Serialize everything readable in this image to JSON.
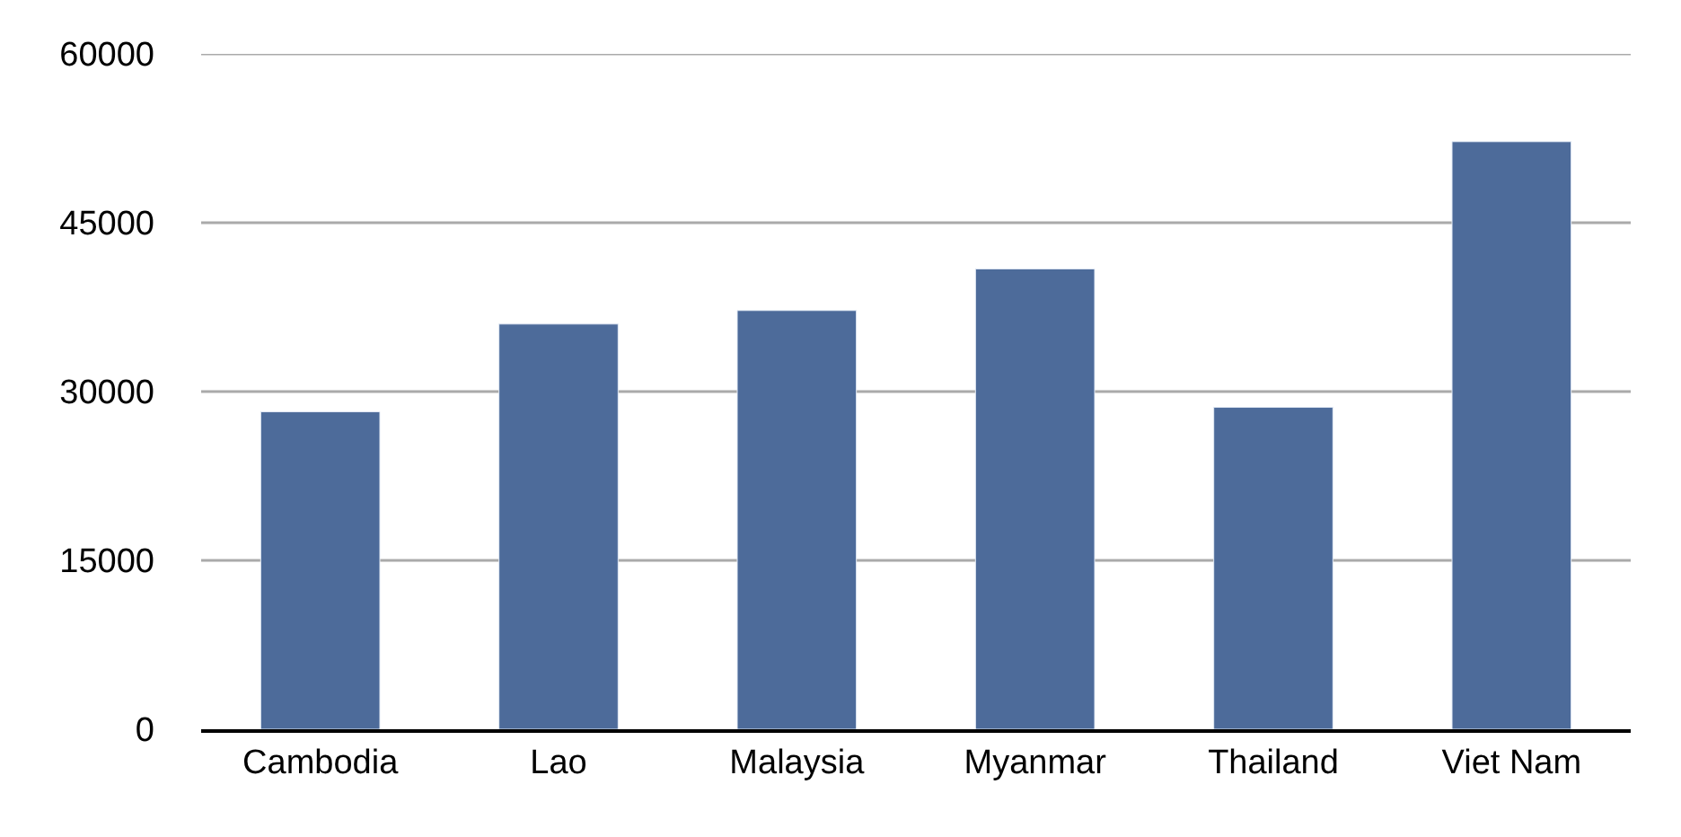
{
  "chart_data": {
    "type": "bar",
    "categories": [
      "Cambodia",
      "Lao",
      "Malaysia",
      "Myanmar",
      "Thailand",
      "Viet Nam"
    ],
    "values": [
      28200,
      36000,
      37200,
      40900,
      28600,
      52200
    ],
    "color": "#4d6b9a",
    "ylim": [
      0,
      60000
    ],
    "yticks": [
      0,
      15000,
      30000,
      45000,
      60000
    ],
    "grid": "y"
  }
}
